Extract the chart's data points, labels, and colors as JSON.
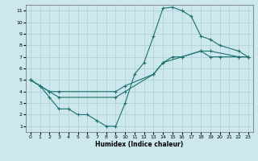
{
  "xlabel": "Humidex (Indice chaleur)",
  "xlim": [
    -0.5,
    23.5
  ],
  "ylim": [
    0.5,
    11.5
  ],
  "xticks": [
    0,
    1,
    2,
    3,
    4,
    5,
    6,
    7,
    8,
    9,
    10,
    11,
    12,
    13,
    14,
    15,
    16,
    17,
    18,
    19,
    20,
    21,
    22,
    23
  ],
  "yticks": [
    1,
    2,
    3,
    4,
    5,
    6,
    7,
    8,
    9,
    10,
    11
  ],
  "bg_color": "#cce8ec",
  "grid_color": "#aacdd4",
  "line_color": "#1e7070",
  "line1_x": [
    0,
    1,
    2,
    3,
    4,
    5,
    6,
    7,
    8,
    9,
    10,
    11,
    12,
    13,
    14,
    15,
    16,
    17,
    18,
    19,
    20,
    22,
    23
  ],
  "line1_y": [
    5.0,
    4.5,
    3.5,
    2.5,
    2.5,
    2.0,
    2.0,
    1.5,
    1.0,
    1.0,
    3.0,
    5.5,
    6.5,
    8.8,
    11.2,
    11.3,
    11.0,
    10.5,
    8.8,
    8.5,
    8.0,
    7.5,
    7.0
  ],
  "line2_x": [
    0,
    1,
    2,
    3,
    9,
    10,
    13,
    14,
    15,
    16,
    18,
    19,
    20,
    22,
    23
  ],
  "line2_y": [
    5.0,
    4.5,
    4.0,
    4.0,
    4.0,
    4.5,
    5.5,
    6.5,
    7.0,
    7.0,
    7.5,
    7.0,
    7.0,
    7.0,
    7.0
  ],
  "line3_x": [
    0,
    1,
    2,
    3,
    9,
    10,
    13,
    14,
    16,
    18,
    19,
    22,
    23
  ],
  "line3_y": [
    5.0,
    4.5,
    4.0,
    3.5,
    3.5,
    4.0,
    5.5,
    6.5,
    7.0,
    7.5,
    7.5,
    7.0,
    7.0
  ]
}
